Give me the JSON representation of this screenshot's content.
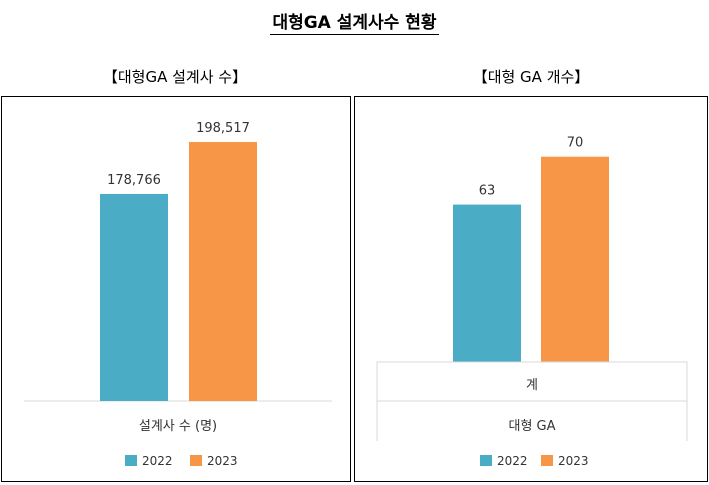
{
  "title": "대형GA 설계사수 현황",
  "chart_data": [
    {
      "type": "bar",
      "panel_title": "【대형GA 설계사 수】",
      "categories": [
        "설계사 수 (명)"
      ],
      "series": [
        {
          "name": "2022",
          "values": [
            178766
          ],
          "labels": [
            "178,766"
          ]
        },
        {
          "name": "2023",
          "values": [
            198517
          ],
          "labels": [
            "198,517"
          ]
        }
      ],
      "ylim": [
        100000,
        205000
      ],
      "legend": "bottom",
      "grid": false
    },
    {
      "type": "bar",
      "panel_title": "【대형 GA 개수】",
      "categories": [
        "계"
      ],
      "category_group": "대형 GA",
      "series": [
        {
          "name": "2022",
          "values": [
            63
          ],
          "labels": [
            "63"
          ]
        },
        {
          "name": "2023",
          "values": [
            70
          ],
          "labels": [
            "70"
          ]
        }
      ],
      "ylim": [
        40,
        72
      ],
      "legend": "bottom",
      "grid": false
    }
  ],
  "colors": {
    "2022": "#4BACC6",
    "2023": "#F79646",
    "axis": "#D9D9D9"
  }
}
